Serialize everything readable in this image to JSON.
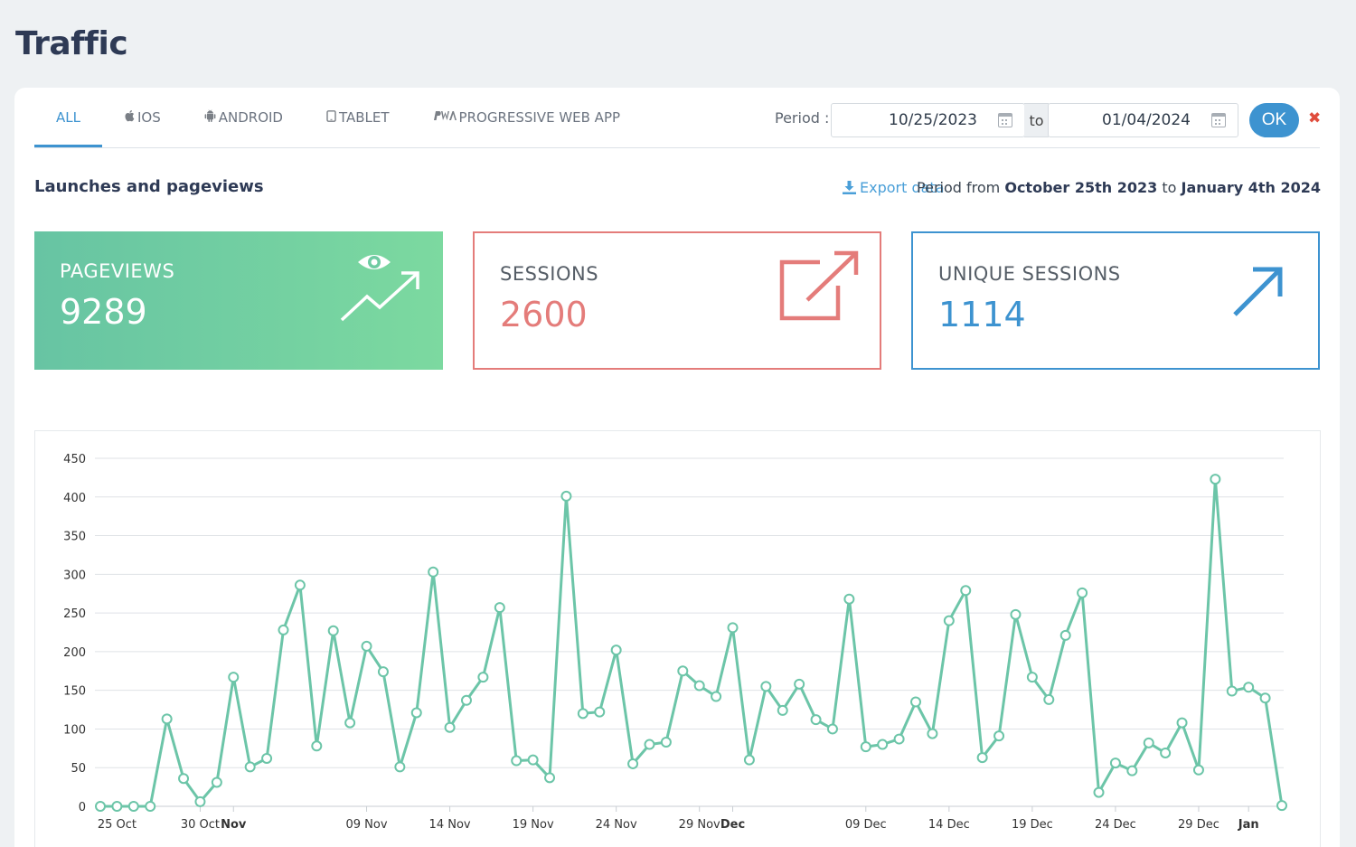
{
  "page": {
    "title": "Traffic"
  },
  "tabs": [
    {
      "label": "ALL",
      "icon": "",
      "active": true
    },
    {
      "label": "IOS",
      "icon": "apple-icon",
      "active": false
    },
    {
      "label": "ANDROID",
      "icon": "android-icon",
      "active": false
    },
    {
      "label": "TABLET",
      "icon": "tablet-icon",
      "active": false
    },
    {
      "label": "PROGRESSIVE WEB APP",
      "icon": "pwa-icon",
      "active": false
    }
  ],
  "period": {
    "label": "Period :",
    "start": "10/25/2023",
    "to": "to",
    "end": "01/04/2024",
    "ok": "OK"
  },
  "section": {
    "title": "Launches and pageviews",
    "export": "Export data",
    "summary_prefix": "Period from",
    "summary_start": "October 25th 2023",
    "summary_mid": "to",
    "summary_end": "January 4th 2024"
  },
  "stats": {
    "pageviews": {
      "label": "PAGEVIEWS",
      "value": "9289"
    },
    "sessions": {
      "label": "SESSIONS",
      "value": "2600"
    },
    "unique": {
      "label": "UNIQUE SESSIONS",
      "value": "1114"
    }
  },
  "colors": {
    "accent": "#3d93d0",
    "green": "#67c4a3",
    "red": "#e47c7a",
    "line": "#6cc5a8"
  },
  "chart_data": {
    "type": "line",
    "ylim": [
      0,
      450
    ],
    "yticks": [
      0,
      50,
      100,
      150,
      200,
      250,
      300,
      350,
      400,
      450
    ],
    "xticks": [
      {
        "label": "25 Oct",
        "index": 1,
        "bold": false
      },
      {
        "label": "30 Oct",
        "index": 6,
        "bold": false
      },
      {
        "label": "Nov",
        "index": 8,
        "bold": true
      },
      {
        "label": "09 Nov",
        "index": 16,
        "bold": false
      },
      {
        "label": "14 Nov",
        "index": 21,
        "bold": false
      },
      {
        "label": "19 Nov",
        "index": 26,
        "bold": false
      },
      {
        "label": "24 Nov",
        "index": 31,
        "bold": false
      },
      {
        "label": "29 Nov",
        "index": 36,
        "bold": false
      },
      {
        "label": "Dec",
        "index": 38,
        "bold": true
      },
      {
        "label": "09 Dec",
        "index": 46,
        "bold": false
      },
      {
        "label": "14 Dec",
        "index": 51,
        "bold": false
      },
      {
        "label": "19 Dec",
        "index": 56,
        "bold": false
      },
      {
        "label": "24 Dec",
        "index": 61,
        "bold": false
      },
      {
        "label": "29 Dec",
        "index": 66,
        "bold": false
      },
      {
        "label": "Jan",
        "index": 69,
        "bold": true
      }
    ],
    "grid": true,
    "values": [
      0,
      0,
      0,
      0,
      113,
      36,
      6,
      31,
      167,
      51,
      62,
      228,
      286,
      78,
      227,
      108,
      207,
      174,
      51,
      121,
      303,
      102,
      137,
      167,
      257,
      59,
      60,
      37,
      401,
      120,
      122,
      202,
      55,
      80,
      83,
      175,
      156,
      142,
      231,
      60,
      155,
      124,
      158,
      112,
      100,
      268,
      77,
      80,
      87,
      135,
      94,
      240,
      279,
      63,
      91,
      248,
      167,
      138,
      221,
      276,
      18,
      56,
      46,
      82,
      69,
      108,
      47,
      423,
      149,
      154,
      140,
      1
    ]
  }
}
